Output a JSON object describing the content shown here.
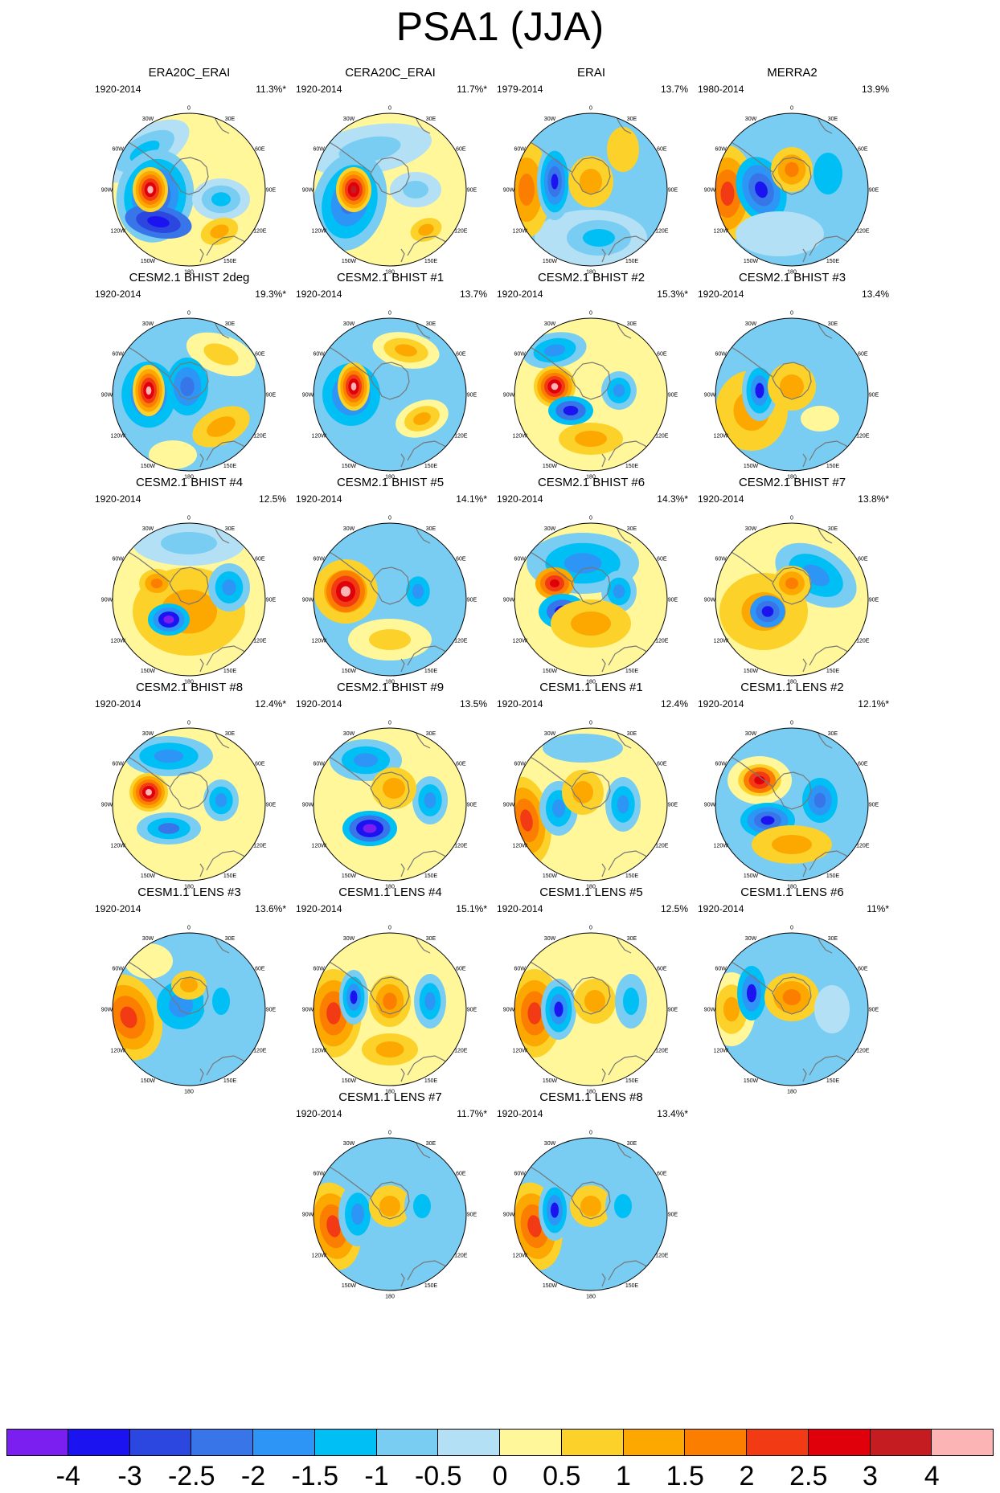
{
  "title": "PSA1 (JJA)",
  "palette": [
    "#7a1ff0",
    "#1c14f0",
    "#2b47e0",
    "#3775e8",
    "#2d95f5",
    "#00bff5",
    "#79ccf2",
    "#b3e0f5",
    "#fff79a",
    "#fcd22a",
    "#fca800",
    "#fc7e00",
    "#f23a14",
    "#e0000b",
    "#c41c20",
    "#fcb4b4"
  ],
  "colorbar": {
    "labels": [
      "-4",
      "-3",
      "-2.5",
      "-2",
      "-1.5",
      "-1",
      "-0.5",
      "0",
      "0.5",
      "1",
      "1.5",
      "2",
      "2.5",
      "3",
      "4"
    ]
  },
  "lon_labels": [
    "0",
    "30E",
    "60E",
    "90E",
    "120E",
    "150E",
    "180",
    "150W",
    "120W",
    "90W",
    "60W",
    "30W"
  ],
  "panels": [
    {
      "title": "ERA20C_ERAI",
      "years": "1920-2014",
      "pct": "11.3%*"
    },
    {
      "title": "CERA20C_ERAI",
      "years": "1920-2014",
      "pct": "11.7%*"
    },
    {
      "title": "ERAI",
      "years": "1979-2014",
      "pct": "13.7%"
    },
    {
      "title": "MERRA2",
      "years": "1980-2014",
      "pct": "13.9%"
    },
    {
      "title": "CESM2.1 BHIST 2deg",
      "years": "1920-2014",
      "pct": "19.3%*"
    },
    {
      "title": "CESM2.1 BHIST #1",
      "years": "1920-2014",
      "pct": "13.7%"
    },
    {
      "title": "CESM2.1 BHIST #2",
      "years": "1920-2014",
      "pct": "15.3%*"
    },
    {
      "title": "CESM2.1 BHIST #3",
      "years": "1920-2014",
      "pct": "13.4%"
    },
    {
      "title": "CESM2.1 BHIST #4",
      "years": "1920-2014",
      "pct": "12.5%"
    },
    {
      "title": "CESM2.1 BHIST #5",
      "years": "1920-2014",
      "pct": "14.1%*"
    },
    {
      "title": "CESM2.1 BHIST #6",
      "years": "1920-2014",
      "pct": "14.3%*"
    },
    {
      "title": "CESM2.1 BHIST #7",
      "years": "1920-2014",
      "pct": "13.8%*"
    },
    {
      "title": "CESM2.1 BHIST #8",
      "years": "1920-2014",
      "pct": "12.4%*"
    },
    {
      "title": "CESM2.1 BHIST #9",
      "years": "1920-2014",
      "pct": "13.5%"
    },
    {
      "title": "CESM1.1 LENS #1",
      "years": "1920-2014",
      "pct": "12.4%"
    },
    {
      "title": "CESM1.1 LENS #2",
      "years": "1920-2014",
      "pct": "12.1%*"
    },
    {
      "title": "CESM1.1 LENS #3",
      "years": "1920-2014",
      "pct": "13.6%*"
    },
    {
      "title": "CESM1.1 LENS #4",
      "years": "1920-2014",
      "pct": "15.1%*"
    },
    {
      "title": "CESM1.1 LENS #5",
      "years": "1920-2014",
      "pct": "12.5%"
    },
    {
      "title": "CESM1.1 LENS #6",
      "years": "1920-2014",
      "pct": "11%*"
    },
    {
      "title": "CESM1.1 LENS #7",
      "years": "1920-2014",
      "pct": "11.7%*"
    },
    {
      "title": "CESM1.1 LENS #8",
      "years": "1920-2014",
      "pct": "13.4%*"
    }
  ]
}
